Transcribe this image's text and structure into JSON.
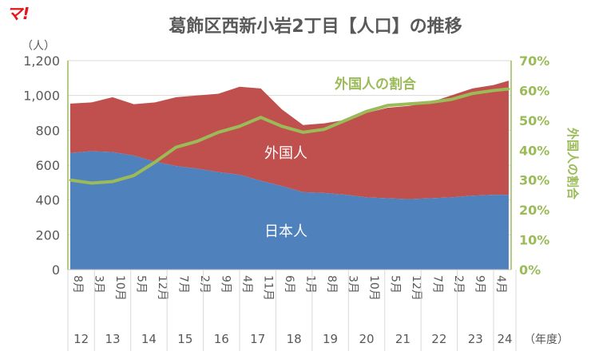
{
  "logo": "マ!",
  "chart_data": {
    "type": "area",
    "title": "葛飾区西新小岩2丁目【人口】の推移",
    "ylabel": "（人）",
    "y2label": "外国人の割合",
    "xlabel": "（年度）",
    "ylim": [
      0,
      1200
    ],
    "y2lim": [
      0,
      70
    ],
    "yticks": [
      "0",
      "200",
      "400",
      "600",
      "800",
      "1,000",
      "1,200"
    ],
    "y2ticks": [
      "0%",
      "10%",
      "20%",
      "30%",
      "40%",
      "50%",
      "60%",
      "70%"
    ],
    "month_labels": [
      "8月",
      "3月",
      "10月",
      "5月",
      "12月",
      "7月",
      "2月",
      "9月",
      "4月",
      "11月",
      "6月",
      "1月",
      "8月",
      "3月",
      "10月",
      "5月",
      "12月",
      "7月",
      "2月",
      "9月",
      "4月"
    ],
    "fiscal_years": [
      "12",
      "13",
      "14",
      "15",
      "16",
      "17",
      "18",
      "19",
      "20",
      "21",
      "22",
      "23",
      "24"
    ],
    "x": [
      "2012-08",
      "2013-03",
      "2013-10",
      "2014-05",
      "2014-12",
      "2015-07",
      "2016-02",
      "2016-09",
      "2017-04",
      "2017-11",
      "2018-06",
      "2019-01",
      "2019-08",
      "2020-03",
      "2020-10",
      "2021-05",
      "2021-12",
      "2022-07",
      "2023-02",
      "2023-09",
      "2024-04",
      "2024-09"
    ],
    "series": [
      {
        "name": "日本人",
        "color": "#4f81bd",
        "values": [
          670,
          680,
          675,
          655,
          620,
          595,
          580,
          560,
          545,
          510,
          480,
          445,
          440,
          430,
          415,
          410,
          405,
          410,
          415,
          425,
          430,
          430
        ]
      },
      {
        "name": "外国人",
        "color": "#c0504d",
        "values": [
          283,
          280,
          315,
          295,
          340,
          395,
          420,
          450,
          505,
          530,
          440,
          385,
          400,
          430,
          485,
          520,
          535,
          550,
          585,
          615,
          630,
          655
        ]
      },
      {
        "name": "外国人の割合",
        "color": "#9bbb59",
        "axis": "right",
        "values": [
          30,
          29,
          29.5,
          31.5,
          36,
          41,
          43,
          46,
          48,
          51,
          48,
          46,
          47,
          50,
          53,
          55,
          55.5,
          56,
          57,
          59,
          60,
          60.5
        ]
      }
    ]
  }
}
